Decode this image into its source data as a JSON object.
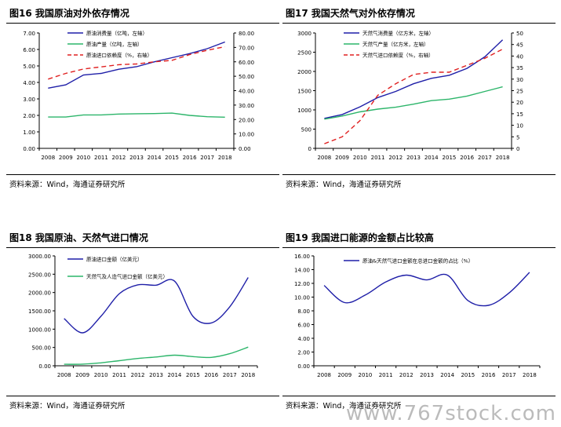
{
  "colors": {
    "blue": "#1f1fa8",
    "green": "#2cb56a",
    "red": "#e02020"
  },
  "watermark": "www.767stock.com",
  "panels": [
    {
      "title": "图16 我国原油对外依存情况",
      "source": "资料来源：Wind，海通证券研究所"
    },
    {
      "title": "图17 我国天然气对外依存情况",
      "source": "资料来源：Wind，海通证券研究所"
    },
    {
      "title": "图18 我国原油、天然气进口情况",
      "source": "资料来源：Wind，海通证券研究所"
    },
    {
      "title": "图19 我国进口能源的金额占比较高",
      "source": "资料来源：Wind，海通证券研究所"
    }
  ],
  "chart_data": [
    {
      "type": "line",
      "x": [
        "2008",
        "2009",
        "2010",
        "2011",
        "2012",
        "2013",
        "2014",
        "2015",
        "2016",
        "2017",
        "2018"
      ],
      "ylim": [
        0,
        7
      ],
      "yticks": [
        "0.00",
        "1.00",
        "2.00",
        "3.00",
        "4.00",
        "5.00",
        "6.00",
        "7.00"
      ],
      "y2lim": [
        0,
        80
      ],
      "y2ticks": [
        "0.00",
        "10.00",
        "20.00",
        "30.00",
        "40.00",
        "50.00",
        "60.00",
        "70.00",
        "80.00"
      ],
      "series": [
        {
          "name": "原油消费量（亿吨，左轴）",
          "color": "blue",
          "dash": false,
          "axis": "left",
          "values": [
            3.65,
            3.85,
            4.45,
            4.55,
            4.8,
            4.95,
            5.25,
            5.5,
            5.75,
            6.05,
            6.45
          ]
        },
        {
          "name": "原油产量（亿吨，左轴）",
          "color": "green",
          "dash": false,
          "axis": "left",
          "values": [
            1.9,
            1.9,
            2.03,
            2.03,
            2.08,
            2.1,
            2.11,
            2.14,
            2.0,
            1.92,
            1.89
          ]
        },
        {
          "name": "原油进口依赖度（%，右轴）",
          "color": "red",
          "dash": true,
          "axis": "right",
          "values": [
            48.0,
            52.0,
            55.0,
            56.5,
            58.0,
            58.5,
            60.0,
            61.0,
            65.0,
            68.0,
            70.5
          ]
        }
      ]
    },
    {
      "type": "line",
      "x": [
        "2008",
        "2009",
        "2010",
        "2011",
        "2012",
        "2013",
        "2014",
        "2015",
        "2016",
        "2017",
        "2018"
      ],
      "ylim": [
        0,
        3000
      ],
      "yticks": [
        "0",
        "500",
        "1000",
        "1500",
        "2000",
        "2500",
        "3000"
      ],
      "y2lim": [
        0,
        50
      ],
      "y2ticks": [
        "0",
        "5",
        "10",
        "15",
        "20",
        "25",
        "30",
        "35",
        "40",
        "45",
        "50"
      ],
      "series": [
        {
          "name": "天然气消费量（亿方米，左轴）",
          "color": "blue",
          "dash": false,
          "axis": "left",
          "values": [
            780,
            880,
            1080,
            1320,
            1480,
            1680,
            1820,
            1900,
            2080,
            2380,
            2820
          ]
        },
        {
          "name": "天然气产量（亿方米，左轴）",
          "color": "green",
          "dash": false,
          "axis": "left",
          "values": [
            760,
            840,
            950,
            1020,
            1070,
            1150,
            1240,
            1280,
            1360,
            1480,
            1600
          ]
        },
        {
          "name": "天然气进口依赖度（%，右轴）",
          "color": "red",
          "dash": true,
          "axis": "right",
          "values": [
            2,
            5,
            12,
            23,
            28,
            32,
            33,
            33,
            36,
            39,
            43
          ]
        }
      ]
    },
    {
      "type": "line",
      "x": [
        "2008",
        "2009",
        "2010",
        "2011",
        "2012",
        "2013",
        "2014",
        "2015",
        "2016",
        "2017",
        "2018"
      ],
      "ylim": [
        0,
        3000
      ],
      "yticks": [
        "0.00",
        "500.00",
        "1000.00",
        "1500.00",
        "2000.00",
        "2500.00",
        "3000.00"
      ],
      "series": [
        {
          "name": "原油进口金额（亿美元）",
          "color": "blue",
          "dash": false,
          "values": [
            1290,
            900,
            1350,
            1970,
            2210,
            2200,
            2310,
            1350,
            1170,
            1610,
            2410
          ]
        },
        {
          "name": "天然气及人造气进口金额（亿美元）",
          "color": "green",
          "dash": false,
          "values": [
            40,
            45,
            80,
            140,
            200,
            240,
            290,
            250,
            230,
            330,
            510
          ]
        }
      ]
    },
    {
      "type": "line",
      "x": [
        "2008",
        "2009",
        "2010",
        "2011",
        "2012",
        "2013",
        "2014",
        "2015",
        "2016",
        "2017",
        "2018"
      ],
      "ylim": [
        0,
        16
      ],
      "yticks": [
        "0.00",
        "2.00",
        "4.00",
        "6.00",
        "8.00",
        "10.00",
        "12.00",
        "14.00",
        "16.00"
      ],
      "series": [
        {
          "name": "原油&天然气进口金额在总进口金额的占比（%）",
          "color": "blue",
          "dash": false,
          "values": [
            11.7,
            9.2,
            10.3,
            12.2,
            13.2,
            12.5,
            13.2,
            9.5,
            8.8,
            10.6,
            13.6
          ]
        }
      ]
    }
  ]
}
